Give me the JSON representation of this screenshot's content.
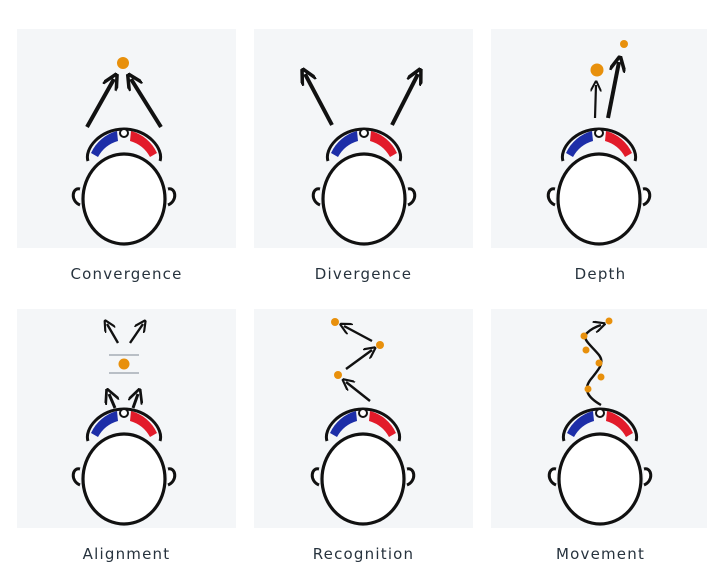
{
  "panels": [
    {
      "label": "Convergence"
    },
    {
      "label": "Divergence"
    },
    {
      "label": "Depth"
    },
    {
      "label": "Alignment"
    },
    {
      "label": "Recognition"
    },
    {
      "label": "Movement"
    }
  ],
  "colors": {
    "card_bg": "#f4f6f8",
    "left_band": "#1d2ea8",
    "right_band": "#e21b2a",
    "target_dot": "#e8900c",
    "outline": "#111111"
  }
}
